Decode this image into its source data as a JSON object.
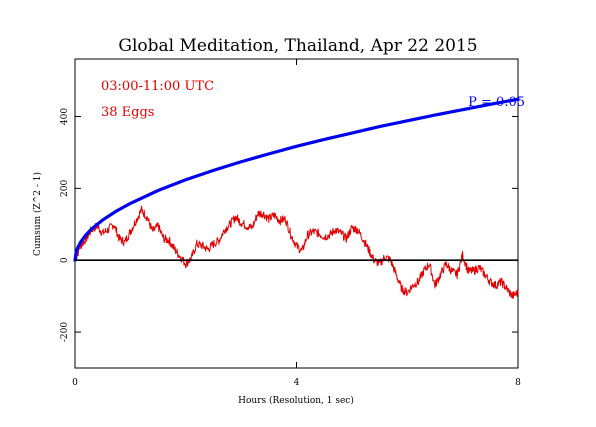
{
  "chart_data": {
    "type": "line",
    "title": "Global Meditation, Thailand, Apr 22 2015",
    "xlabel": "Hours (Resolution, 1 sec)",
    "ylabel": "Cumsum (Z^2 - 1)",
    "xlim": [
      0,
      8
    ],
    "ylim": [
      -300,
      560
    ],
    "x_ticks": [
      0,
      4,
      8
    ],
    "y_ticks": [
      -200,
      0,
      200,
      400
    ],
    "grid": false,
    "legend": "none",
    "annotations": {
      "time_range": "03:00-11:00 UTC",
      "eggs": "38 Eggs",
      "probability": "P = 0.05"
    },
    "series": [
      {
        "color": "#e00000",
        "x": [
          0,
          0.1,
          0.2,
          0.3,
          0.4,
          0.5,
          0.6,
          0.7,
          0.8,
          0.9,
          1.0,
          1.1,
          1.2,
          1.3,
          1.4,
          1.5,
          1.6,
          1.7,
          1.8,
          1.9,
          2.0,
          2.1,
          2.2,
          2.3,
          2.4,
          2.5,
          2.6,
          2.7,
          2.8,
          2.9,
          3.0,
          3.1,
          3.2,
          3.3,
          3.4,
          3.5,
          3.6,
          3.7,
          3.8,
          3.9,
          4.0,
          4.1,
          4.2,
          4.3,
          4.4,
          4.5,
          4.6,
          4.7,
          4.8,
          4.9,
          5.0,
          5.1,
          5.2,
          5.3,
          5.4,
          5.5,
          5.6,
          5.7,
          5.8,
          5.9,
          6.0,
          6.1,
          6.2,
          6.3,
          6.4,
          6.5,
          6.6,
          6.7,
          6.8,
          6.9,
          7.0,
          7.1,
          7.2,
          7.3,
          7.4,
          7.5,
          7.6,
          7.7,
          7.8,
          7.9,
          8.0
        ],
        "values": [
          0,
          40,
          60,
          85,
          95,
          75,
          85,
          100,
          60,
          50,
          80,
          110,
          140,
          120,
          80,
          95,
          60,
          55,
          30,
          10,
          -10,
          5,
          45,
          40,
          30,
          45,
          55,
          85,
          100,
          120,
          105,
          95,
          90,
          130,
          130,
          115,
          125,
          110,
          115,
          70,
          40,
          25,
          70,
          80,
          75,
          65,
          70,
          85,
          75,
          60,
          90,
          85,
          60,
          30,
          0,
          -10,
          10,
          0,
          -40,
          -80,
          -90,
          -70,
          -60,
          -30,
          -10,
          -70,
          -40,
          -10,
          -30,
          -40,
          15,
          -30,
          -30,
          -20,
          -40,
          -60,
          -70,
          -60,
          -80,
          -100,
          -90
        ]
      },
      {
        "color": "#0000ee",
        "label": "P = 0.05",
        "x": [
          0,
          0.02,
          0.05,
          0.1,
          0.2,
          0.3,
          0.5,
          0.75,
          1.0,
          1.5,
          2.0,
          2.5,
          3.0,
          3.5,
          4.0,
          4.5,
          5.0,
          5.5,
          6.0,
          6.5,
          7.0,
          7.5,
          8.0
        ],
        "values": [
          0,
          22,
          35,
          50,
          71,
          87,
          112,
          137,
          158,
          194,
          224,
          250,
          274,
          296,
          317,
          336,
          354,
          372,
          388,
          404,
          419,
          434,
          448
        ]
      },
      {
        "color": "#000000",
        "label": "baseline",
        "x": [
          0,
          8
        ],
        "values": [
          0,
          0
        ]
      }
    ]
  }
}
